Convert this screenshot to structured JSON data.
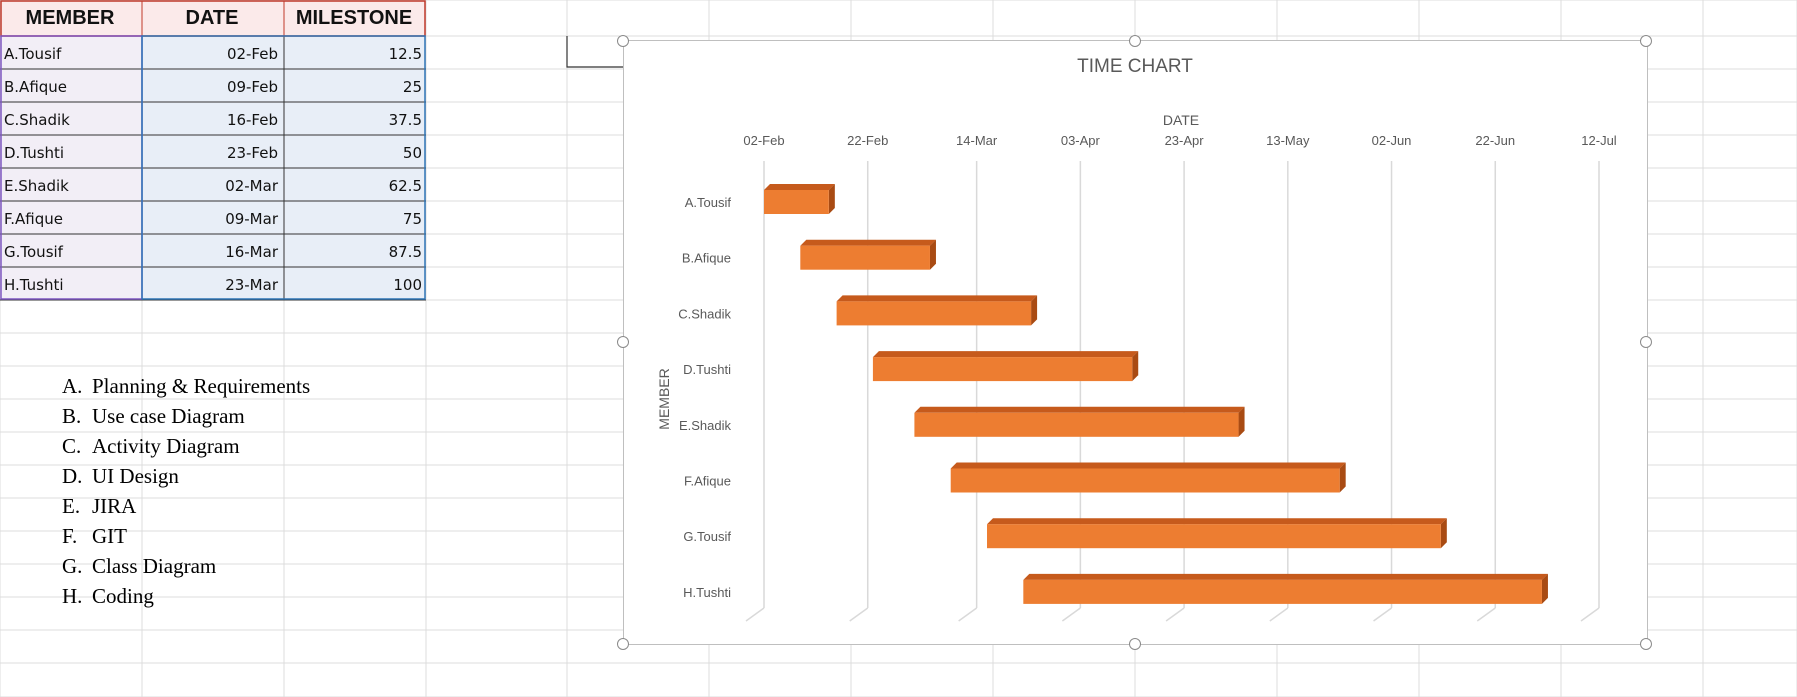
{
  "sheet": {
    "headers": {
      "member": "MEMBER",
      "date": "DATE",
      "milestone": "MILESTONE"
    },
    "rows": [
      {
        "member": "A.Tousif",
        "date": "02-Feb",
        "milestone": "12.5"
      },
      {
        "member": "B.Afique",
        "date": "09-Feb",
        "milestone": "25"
      },
      {
        "member": "C.Shadik",
        "date": "16-Feb",
        "milestone": "37.5"
      },
      {
        "member": "D.Tushti",
        "date": "23-Feb",
        "milestone": "50"
      },
      {
        "member": "E.Shadik",
        "date": "02-Mar",
        "milestone": "62.5"
      },
      {
        "member": "F.Afique",
        "date": "09-Mar",
        "milestone": "75"
      },
      {
        "member": "G.Tousif",
        "date": "16-Mar",
        "milestone": "87.5"
      },
      {
        "member": "H.Tushti",
        "date": "23-Mar",
        "milestone": "100"
      }
    ]
  },
  "legend_list": [
    {
      "letter": "A.",
      "text": "Planning & Requirements"
    },
    {
      "letter": "B.",
      "text": "Use case Diagram"
    },
    {
      "letter": "C.",
      "text": "Activity Diagram"
    },
    {
      "letter": "D.",
      "text": "UI Design"
    },
    {
      "letter": "E.",
      "text": "JIRA"
    },
    {
      "letter": "F.",
      "text": "GIT"
    },
    {
      "letter": "G.",
      "text": "Class Diagram"
    },
    {
      "letter": "H.",
      "text": "Coding"
    }
  ],
  "colors": {
    "bar_front": "#ed7d31",
    "bar_top": "#c65a1c",
    "bar_side": "#a94b13",
    "gridline": "#d9d9d9",
    "header_border": "#c0392b",
    "table_border": "#2e75b6",
    "member_fill": "#f2eef6",
    "data_fill": "#e8eef7",
    "header_fill": "#fbeaea"
  },
  "chart_data": {
    "type": "bar",
    "orientation": "horizontal",
    "style": "3d-gantt",
    "title": "TIME CHART",
    "xlabel": "DATE",
    "ylabel": "MEMBER",
    "x_ticks": [
      "02-Feb",
      "22-Feb",
      "14-Mar",
      "03-Apr",
      "23-Apr",
      "13-May",
      "02-Jun",
      "22-Jun",
      "12-Jul"
    ],
    "xlim": [
      "02-Feb",
      "12-Jul"
    ],
    "x_axis_position": "top",
    "gridlines": true,
    "legend": "none",
    "categories": [
      "A.Tousif",
      "B.Afique",
      "C.Shadik",
      "D.Tushti",
      "E.Shadik",
      "F.Afique",
      "G.Tousif",
      "H.Tushti"
    ],
    "series": [
      {
        "start": [
          "2024-02-02",
          "2024-02-09",
          "2024-02-16",
          "2024-02-23",
          "2024-03-02",
          "2024-03-09",
          "2024-03-16",
          "2024-03-23"
        ],
        "duration_days": [
          12.5,
          25,
          37.5,
          50,
          62.5,
          75,
          87.5,
          100
        ]
      }
    ]
  }
}
